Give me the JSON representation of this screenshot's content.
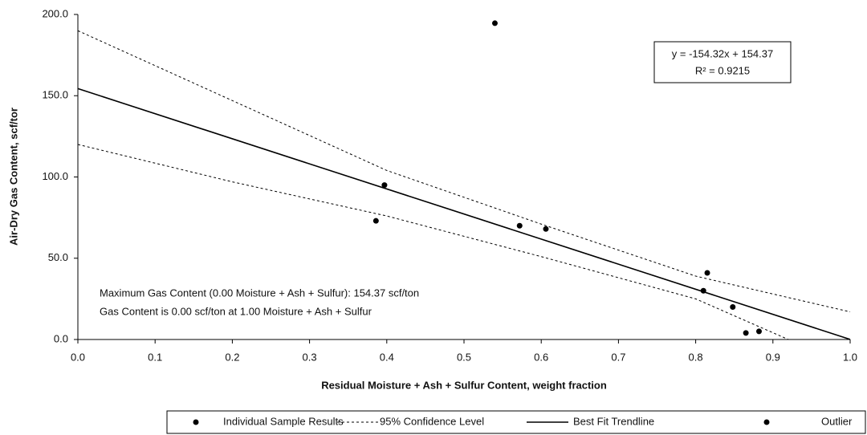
{
  "chart_data": {
    "type": "scatter",
    "xlabel": "Residual Moisture + Ash + Sulfur Content, weight fraction",
    "ylabel": "Air-Dry Gas Content, scf/tor",
    "xlim": [
      0,
      1
    ],
    "ylim": [
      0,
      200
    ],
    "xticks": [
      {
        "value": 0,
        "label": "0.0"
      },
      0.1,
      0.2,
      0.3,
      0.4,
      0.5,
      0.6,
      0.7,
      0.8,
      0.9,
      {
        "value": 1,
        "label": "1.0"
      }
    ],
    "yticks": [
      {
        "value": 0,
        "label": "0.0"
      },
      {
        "value": 50,
        "label": "50.0"
      },
      {
        "value": 100,
        "label": "100.0"
      },
      {
        "value": 150,
        "label": "150.0"
      },
      {
        "value": 200,
        "label": "200.0"
      }
    ],
    "series": [
      {
        "name": "Individual Sample Results",
        "color": "#000000",
        "mark": "dot",
        "x": [
          0.386,
          0.397,
          0.572,
          0.606,
          0.81,
          0.815,
          0.848,
          0.865,
          0.882
        ],
        "values": [
          73,
          95,
          70,
          68,
          30,
          41,
          20,
          4,
          5
        ]
      },
      {
        "name": "95% Confidence Level",
        "color": "#000000",
        "mark": "dashed",
        "x": [
          0,
          0.2,
          0.4,
          0.6,
          0.8,
          1,
          null,
          0,
          0.2,
          0.4,
          0.6,
          0.8,
          0.92
        ],
        "values": [
          190,
          147,
          104,
          71,
          39,
          17,
          null,
          120,
          97,
          76,
          51,
          25,
          0
        ]
      },
      {
        "name": "Best Fit Trendline",
        "color": "#000000",
        "mark": "solid",
        "x": [
          0,
          1
        ],
        "values": [
          154.37,
          0.05
        ]
      },
      {
        "name": "Outlier",
        "color": "#000000",
        "mark": "dot",
        "x": [
          0.54
        ],
        "values": [
          194.6
        ]
      }
    ],
    "annotations": [
      "y = -154.32x + 154.37",
      "R² = 0.9215"
    ],
    "notes": [
      "Maximum Gas Content (0.00 Moisture + Ash + Sulfur): 154.37 scf/ton",
      "Gas Content is 0.00 scf/ton at 1.00 Moisture + Ash + Sulfur"
    ]
  }
}
